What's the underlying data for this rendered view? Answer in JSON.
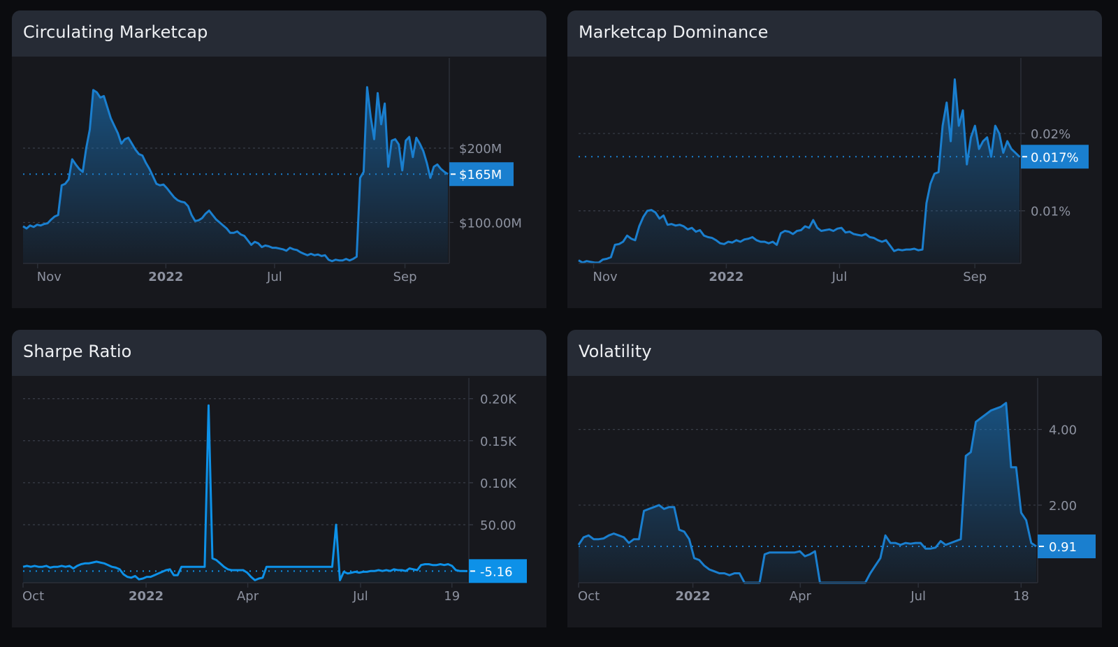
{
  "page": {
    "background": "#0b0c0f"
  },
  "cards": [
    {
      "id": "circulating-marketcap",
      "title": "Circulating Marketcap",
      "accent": "#1a7fcf",
      "last_value_label": "$165M"
    },
    {
      "id": "marketcap-dominance",
      "title": "Marketcap Dominance",
      "accent": "#1a7fcf",
      "last_value_label": "0.017%"
    },
    {
      "id": "sharpe-ratio",
      "title": "Sharpe Ratio",
      "accent": "#0d91e8",
      "last_value_label": "-5.16"
    },
    {
      "id": "volatility",
      "title": "Volatility",
      "accent": "#1a7fcf",
      "last_value_label": "0.91"
    }
  ],
  "chart_data": [
    {
      "type": "area",
      "title": "Circulating Marketcap",
      "xlabel": "",
      "ylabel": "",
      "x_ticks": [
        "Nov",
        "2022",
        "Jul",
        "Sep"
      ],
      "y_ticks": [
        {
          "value": 200,
          "label": "$200M"
        },
        {
          "value": 100,
          "label": "$100.00M"
        }
      ],
      "ylim": [
        45,
        308
      ],
      "unit": "USD millions",
      "last_value": 165,
      "last_value_label": "$165M",
      "grid": true,
      "values": [
        95,
        92,
        96,
        94,
        97,
        96,
        98,
        99,
        104,
        108,
        110,
        150,
        152,
        158,
        185,
        178,
        172,
        168,
        200,
        225,
        278,
        275,
        268,
        270,
        255,
        240,
        230,
        220,
        206,
        212,
        214,
        206,
        198,
        192,
        190,
        180,
        172,
        162,
        152,
        150,
        151,
        146,
        140,
        134,
        130,
        128,
        127,
        122,
        110,
        102,
        103,
        106,
        112,
        116,
        110,
        104,
        100,
        96,
        92,
        86,
        86,
        88,
        84,
        82,
        76,
        70,
        74,
        72,
        67,
        69,
        68,
        66,
        66,
        65,
        64,
        62,
        66,
        64,
        63,
        60,
        58,
        56,
        58,
        56,
        57,
        55,
        56,
        50,
        48,
        50,
        49,
        49,
        51,
        49,
        51,
        54,
        160,
        168,
        282,
        242,
        212,
        274,
        232,
        260,
        175,
        210,
        212,
        205,
        170,
        210,
        215,
        188,
        214,
        206,
        196,
        180,
        160,
        175,
        178,
        172,
        168,
        165
      ],
      "x_tick_positions": [
        0.034,
        0.335,
        0.59,
        0.896
      ]
    },
    {
      "type": "area",
      "title": "Marketcap Dominance",
      "xlabel": "",
      "ylabel": "",
      "x_ticks": [
        "Nov",
        "2022",
        "Jul",
        "Sep"
      ],
      "y_ticks": [
        {
          "value": 0.02,
          "label": "0.02%"
        },
        {
          "value": 0.01,
          "label": "0.01%"
        }
      ],
      "ylim": [
        0.0032,
        0.0285
      ],
      "unit": "percent",
      "last_value": 0.017,
      "last_value_label": "0.017%",
      "grid": true,
      "values": [
        0.0036,
        0.0033,
        0.0035,
        0.0034,
        0.0033,
        0.0033,
        0.0037,
        0.0038,
        0.004,
        0.0056,
        0.0057,
        0.006,
        0.0068,
        0.0064,
        0.0062,
        0.008,
        0.0092,
        0.01,
        0.0101,
        0.0098,
        0.009,
        0.0094,
        0.0082,
        0.0083,
        0.0081,
        0.0082,
        0.008,
        0.0076,
        0.0078,
        0.0073,
        0.0075,
        0.0068,
        0.0066,
        0.0065,
        0.0062,
        0.0058,
        0.0057,
        0.006,
        0.0059,
        0.0062,
        0.006,
        0.0063,
        0.0064,
        0.0066,
        0.0062,
        0.006,
        0.006,
        0.0058,
        0.006,
        0.0056,
        0.0071,
        0.0074,
        0.0073,
        0.007,
        0.0074,
        0.0075,
        0.008,
        0.0078,
        0.0088,
        0.0078,
        0.0074,
        0.0075,
        0.0076,
        0.0074,
        0.0077,
        0.0078,
        0.0072,
        0.0073,
        0.007,
        0.0069,
        0.0068,
        0.007,
        0.0066,
        0.0065,
        0.0062,
        0.006,
        0.0062,
        0.0055,
        0.0048,
        0.005,
        0.0049,
        0.005,
        0.005,
        0.0051,
        0.0049,
        0.005,
        0.011,
        0.0135,
        0.0148,
        0.015,
        0.021,
        0.024,
        0.019,
        0.027,
        0.021,
        0.023,
        0.016,
        0.0195,
        0.021,
        0.018,
        0.019,
        0.0195,
        0.017,
        0.021,
        0.02,
        0.0175,
        0.019,
        0.018,
        0.0175,
        0.017
      ],
      "x_tick_positions": [
        0.034,
        0.334,
        0.59,
        0.896
      ]
    },
    {
      "type": "line",
      "title": "Sharpe Ratio",
      "xlabel": "",
      "ylabel": "",
      "x_ticks": [
        "Oct",
        "2022",
        "Apr",
        "Jul",
        "19"
      ],
      "y_ticks": [
        {
          "value": 200,
          "label": "0.20K"
        },
        {
          "value": 150,
          "label": "0.15K"
        },
        {
          "value": 100,
          "label": "0.10K"
        },
        {
          "value": 50,
          "label": "50.00"
        }
      ],
      "ylim": [
        -19,
        213
      ],
      "last_value": -5.16,
      "last_value_label": "-5.16",
      "grid": true,
      "values": [
        0,
        1,
        0,
        1,
        0,
        0,
        1,
        -1,
        0,
        0,
        1,
        0,
        1,
        -2,
        1,
        3,
        4,
        4,
        5,
        6,
        5,
        4,
        2,
        0,
        -1,
        -3,
        -9,
        -12,
        -13,
        -11,
        -15,
        -14,
        -12,
        -12,
        -10,
        -8,
        -6,
        -4,
        -3,
        -10,
        -10,
        0,
        0,
        0,
        0,
        0,
        0,
        0,
        192,
        10,
        8,
        4,
        0,
        -3,
        -4,
        -4,
        -4,
        -4,
        -7,
        -12,
        -16,
        -14,
        -13,
        0,
        0,
        0,
        0,
        0,
        0,
        0,
        0,
        0,
        0,
        0,
        0,
        0,
        0,
        0,
        0,
        0,
        0,
        50,
        -16,
        -6,
        -8,
        -7,
        -6,
        -7,
        -6,
        -6,
        -5,
        -5,
        -4,
        -5,
        -4,
        -5,
        -3,
        -4,
        -4,
        -5,
        -2,
        -3,
        -4,
        2,
        3,
        3,
        2,
        2,
        3,
        2,
        3,
        1,
        -4,
        -5,
        -5,
        -5.16
      ],
      "x_tick_positions": [
        0.0,
        0.276,
        0.504,
        0.757,
        0.962
      ]
    },
    {
      "type": "area",
      "title": "Volatility",
      "xlabel": "",
      "ylabel": "",
      "x_ticks": [
        "Oct",
        "2022",
        "Apr",
        "Jul",
        "18"
      ],
      "y_ticks": [
        {
          "value": 4,
          "label": "4.00"
        },
        {
          "value": 2,
          "label": "2.00"
        }
      ],
      "ylim": [
        -0.05,
        5.1
      ],
      "last_value": 0.91,
      "last_value_label": "0.91",
      "grid": true,
      "values": [
        0.95,
        1.15,
        1.2,
        1.1,
        1.1,
        1.12,
        1.2,
        1.25,
        1.2,
        1.15,
        1.0,
        1.1,
        1.1,
        1.85,
        1.9,
        1.95,
        2.0,
        1.9,
        1.95,
        1.95,
        1.35,
        1.3,
        1.1,
        0.6,
        0.55,
        0.4,
        0.3,
        0.25,
        0.2,
        0.2,
        0.15,
        0.2,
        0.2,
        -0.05,
        -0.05,
        -0.05,
        -0.05,
        0.7,
        0.75,
        0.75,
        0.75,
        0.75,
        0.75,
        0.75,
        0.78,
        0.65,
        0.7,
        0.78,
        -0.05,
        -0.05,
        -0.05,
        -0.05,
        -0.05,
        -0.05,
        -0.05,
        -0.05,
        -0.05,
        -0.05,
        0.2,
        0.4,
        0.6,
        1.2,
        1.0,
        1.0,
        0.95,
        1.0,
        0.98,
        1.0,
        1.0,
        0.85,
        0.85,
        0.88,
        1.05,
        0.95,
        1.0,
        1.05,
        1.1,
        3.3,
        3.4,
        4.2,
        4.3,
        4.4,
        4.5,
        4.55,
        4.6,
        4.7,
        3.0,
        3.0,
        1.8,
        1.6,
        1.0,
        0.91
      ],
      "x_tick_positions": [
        0.0,
        0.249,
        0.483,
        0.74,
        0.964
      ]
    }
  ]
}
